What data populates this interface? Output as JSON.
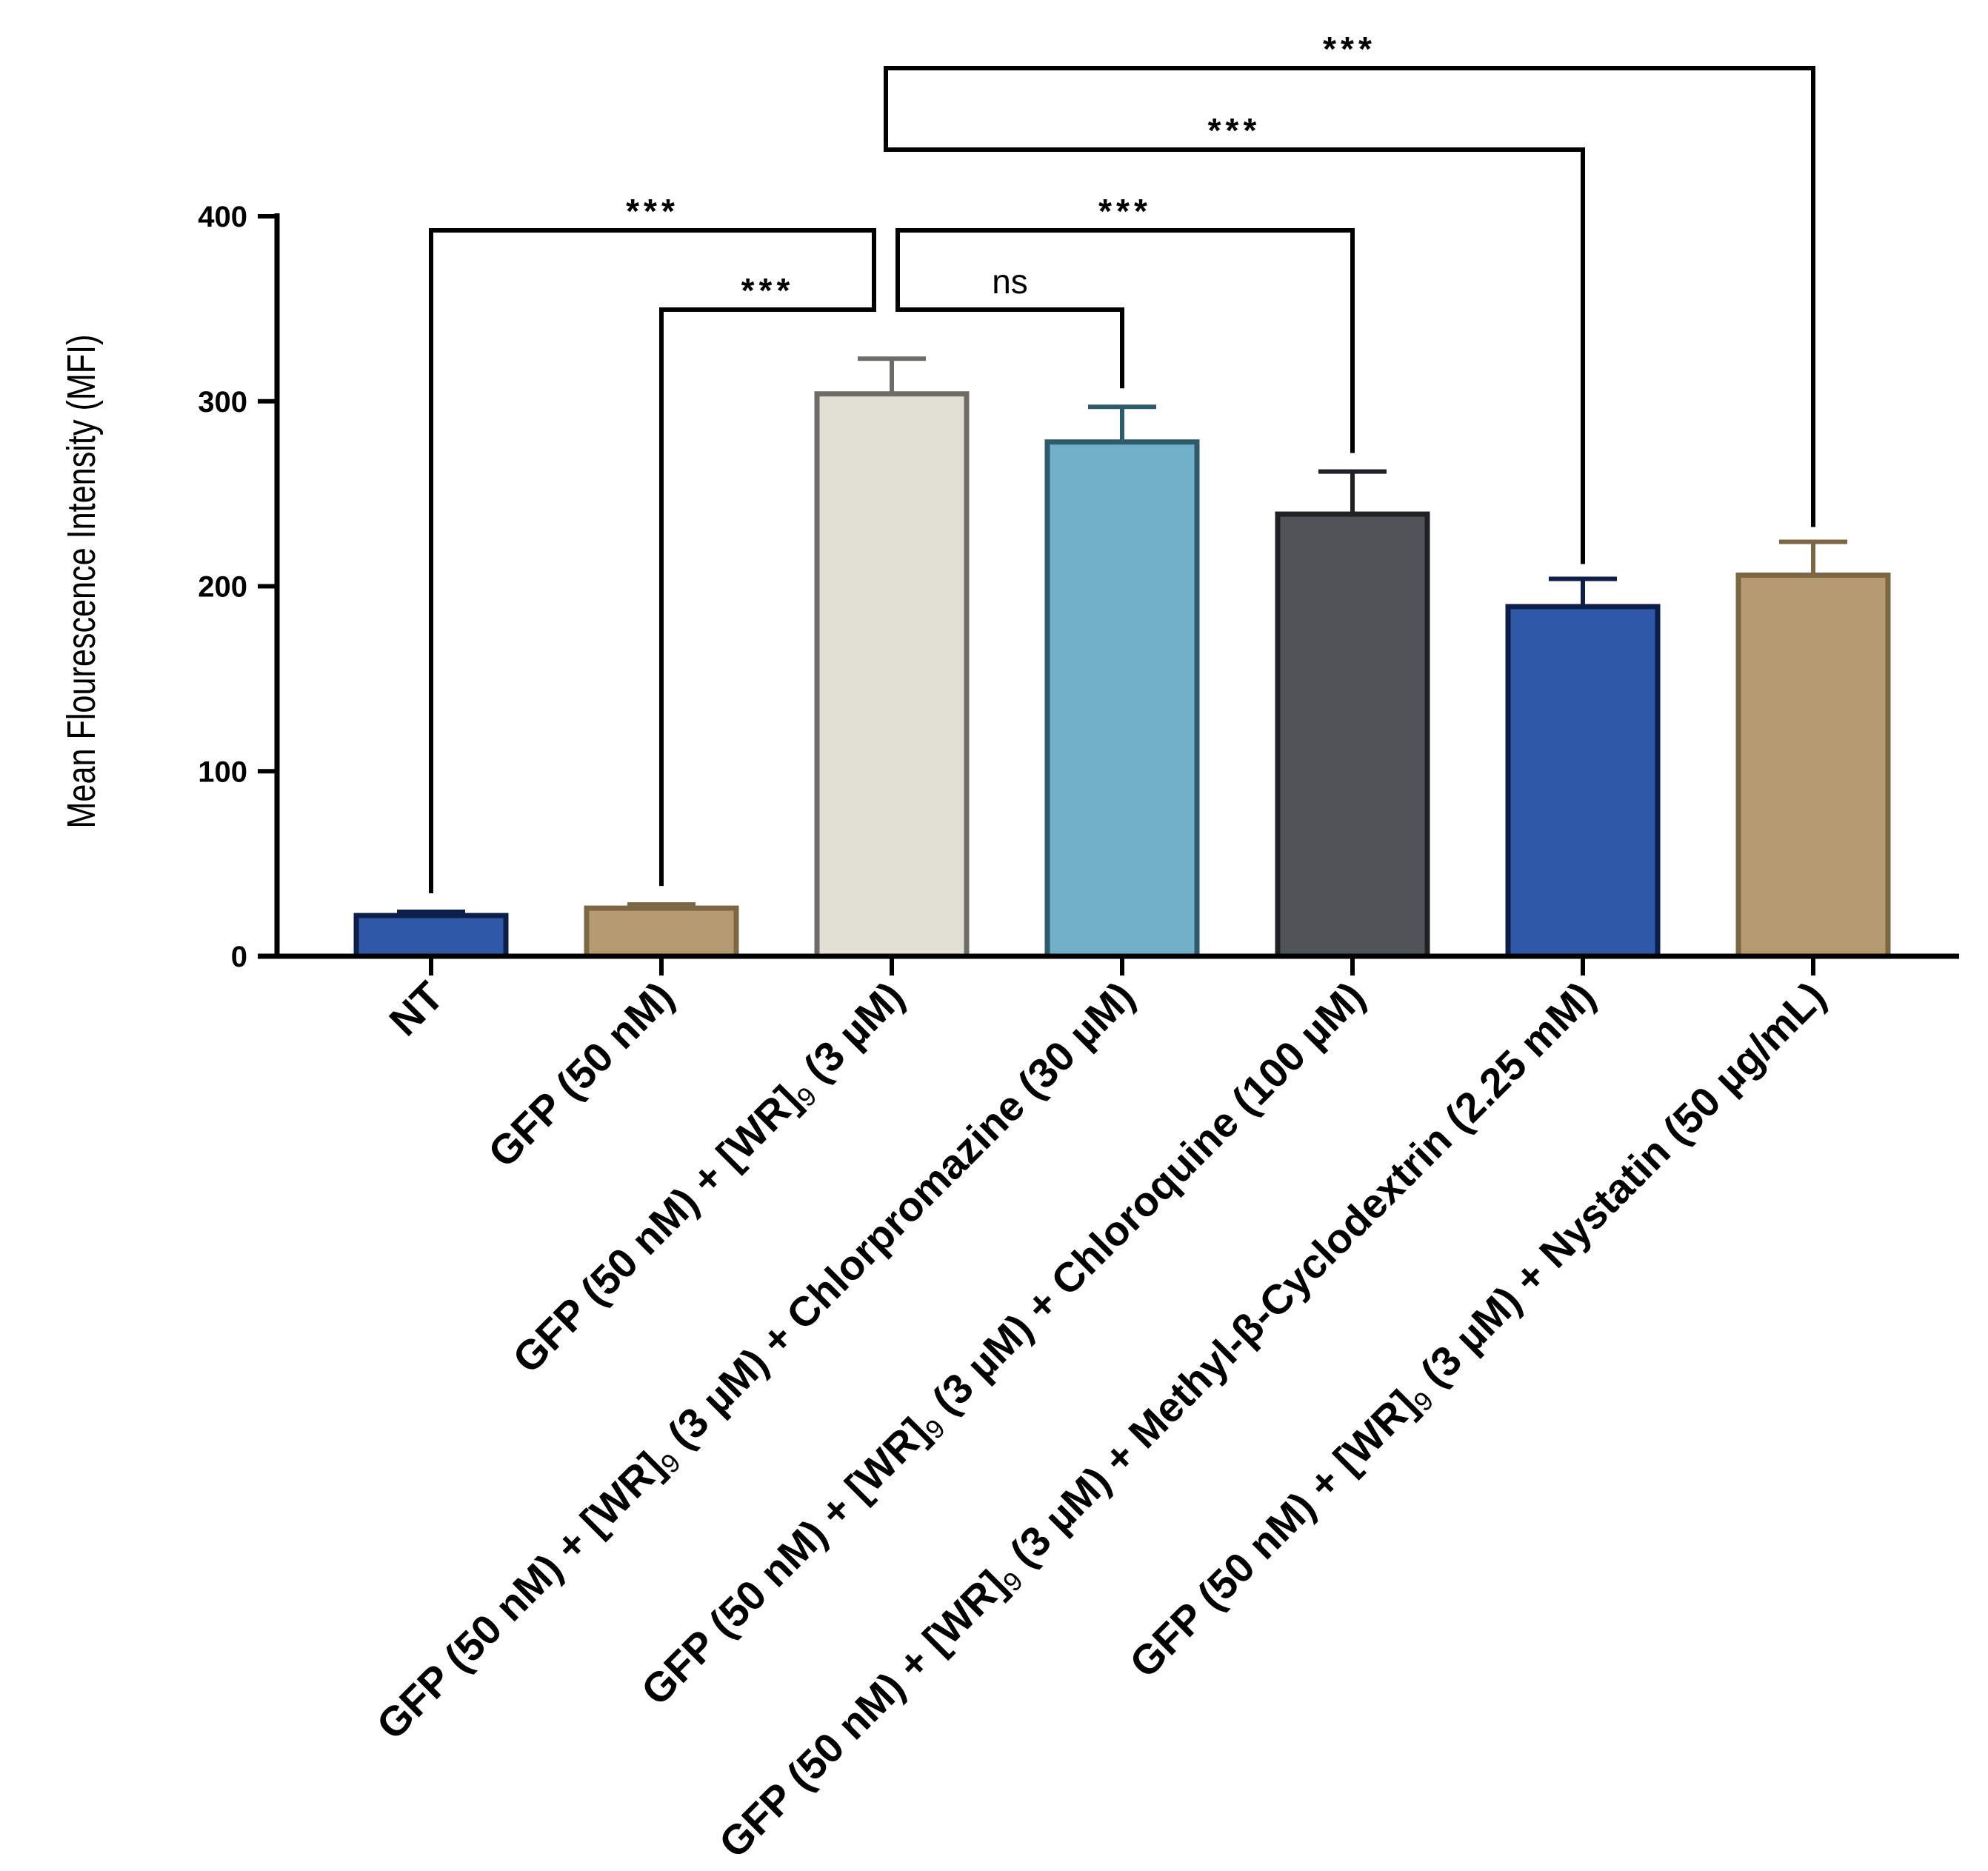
{
  "chart_data": {
    "type": "bar",
    "title": "",
    "xlabel": "",
    "ylabel": "Mean Flourescence Intensity (MFI)",
    "ylim": [
      0,
      400
    ],
    "yticks": [
      "0",
      "100",
      "200",
      "300",
      "400"
    ],
    "categories": [
      "NT",
      "GFP (50 nM)",
      "GFP (50 nM) + [WR]9 (3 µM)",
      "GFP (50 nM) + [WR]9 (3 µM) + Chlorpromazine (30 µM)",
      "GFP (50 nM) + [WR]9 (3 µM) + Chloroquine (100 µM)",
      "GFP (50 nM) + [WR]9 (3 µM) + Methyl-β-Cyclodextrin (2.25 mM)",
      "GFP (50 nM) + [WR]9 (3 µM) + Nystatin (50 µg/mL)"
    ],
    "category_labels": [
      [
        {
          "t": "NT"
        }
      ],
      [
        {
          "t": "GFP (50 nM)"
        }
      ],
      [
        {
          "t": "GFP (50 nM) + [WR]"
        },
        {
          "t": "9",
          "sub": true
        },
        {
          "t": " (3 µM)"
        }
      ],
      [
        {
          "t": "GFP (50 nM) + [WR]"
        },
        {
          "t": "9",
          "sub": true
        },
        {
          "t": " (3 µM) + Chlorpromazine (30 µM)"
        }
      ],
      [
        {
          "t": "GFP (50 nM) + [WR]"
        },
        {
          "t": "9",
          "sub": true
        },
        {
          "t": " (3 µM) + Chloroquine (100 µM)"
        }
      ],
      [
        {
          "t": "GFP (50 nM) + [WR]"
        },
        {
          "t": "9",
          "sub": true
        },
        {
          "t": " (3 µM) + Methyl-β-Cyclodextrin (2.25 mM)"
        }
      ],
      [
        {
          "t": "GFP (50 nM) + [WR]"
        },
        {
          "t": "9",
          "sub": true
        },
        {
          "t": " (3 µM) + Nystatin (50 µg/mL)"
        }
      ]
    ],
    "values": [
      22,
      26,
      304,
      278,
      239,
      189,
      206
    ],
    "errors": [
      2,
      2,
      19,
      19,
      23,
      15,
      18
    ],
    "bar_colors": [
      "#2f59a6",
      "#b59b72",
      "#e2dfd4",
      "#72afc9",
      "#505357",
      "#2f59a6",
      "#b59b72"
    ],
    "bar_edge_colors": [
      "#0c1e4a",
      "#7d6644",
      "#6e6c68",
      "#2e5b6b",
      "#1f2124",
      "#0c1e4a",
      "#7d6644"
    ],
    "comparisons": [
      {
        "from": 2,
        "to": 0,
        "label": "***"
      },
      {
        "from": 2,
        "to": 1,
        "label": "***"
      },
      {
        "from": 2,
        "to": 3,
        "label": "ns"
      },
      {
        "from": 2,
        "to": 4,
        "label": "***"
      },
      {
        "from": 2,
        "to": 5,
        "label": "***"
      },
      {
        "from": 2,
        "to": 6,
        "label": "***"
      }
    ],
    "grid": false,
    "legend": "none"
  }
}
